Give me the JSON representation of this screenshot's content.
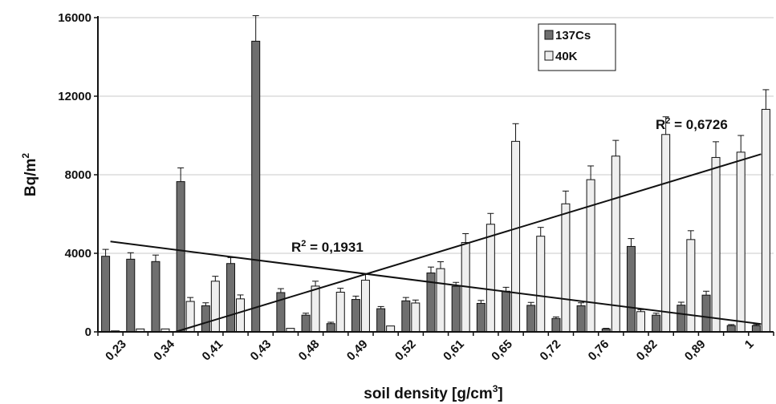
{
  "chart_data": {
    "type": "bar",
    "ylabel": "Bq/m",
    "ylabel_sup": "2",
    "xlabel": "soil density [g/cm",
    "xlabel_sup": "3",
    "xlabel_end": "]",
    "ylim": [
      0,
      16000
    ],
    "yticks": [
      "0",
      "4000",
      "8000",
      "12000",
      "16000"
    ],
    "grid": true,
    "legend_position": "top-right",
    "x_tick_labels": [
      "0,23",
      "0,34",
      "0,41",
      "0,43",
      "0,48",
      "0,49",
      "0,52",
      "0,61",
      "0,65",
      "0,72",
      "0,76",
      "0,82",
      "0,89",
      "1"
    ],
    "series": [
      {
        "name": "137Cs",
        "color": "#6f6f6f",
        "values": [
          3850,
          3700,
          3580,
          7650,
          1330,
          3480,
          14800,
          2000,
          850,
          420,
          1650,
          1180,
          1580,
          3000,
          2320,
          1450,
          2070,
          1350,
          680,
          1330,
          150,
          4350,
          850,
          1360,
          1870,
          320,
          320
        ],
        "errors": [
          350,
          330,
          330,
          700,
          150,
          300,
          1300,
          200,
          100,
          70,
          170,
          110,
          170,
          300,
          200,
          150,
          200,
          150,
          80,
          150,
          30,
          400,
          100,
          150,
          200,
          50,
          50
        ]
      },
      {
        "name": "40K",
        "color": "#eeeeee",
        "values": [
          50,
          150,
          150,
          1550,
          2580,
          1680,
          0,
          180,
          2330,
          2020,
          2630,
          300,
          1470,
          3220,
          4550,
          5480,
          9700,
          4870,
          6520,
          7750,
          8950,
          1030,
          10050,
          4700,
          8880,
          9150,
          11330
        ],
        "errors": [
          0,
          0,
          0,
          200,
          250,
          200,
          0,
          0,
          250,
          200,
          300,
          0,
          150,
          350,
          450,
          550,
          900,
          450,
          650,
          700,
          800,
          100,
          900,
          450,
          800,
          850,
          1000
        ]
      }
    ],
    "trendlines": [
      {
        "series": "137Cs",
        "label": "R",
        "label_sup": "2",
        "label_value": " = 0,1931",
        "start": [
          0,
          4600
        ],
        "end": [
          26,
          400
        ]
      },
      {
        "series": "40K",
        "label": "R",
        "label_sup": "2",
        "label_value": " = 0,6726",
        "start": [
          2.6,
          0
        ],
        "end": [
          26,
          9050
        ]
      }
    ],
    "colors": {
      "cs": "#6f6f6f",
      "k": "#eeeeee",
      "axis": "#111111",
      "grid": "#c8c8c8"
    }
  }
}
